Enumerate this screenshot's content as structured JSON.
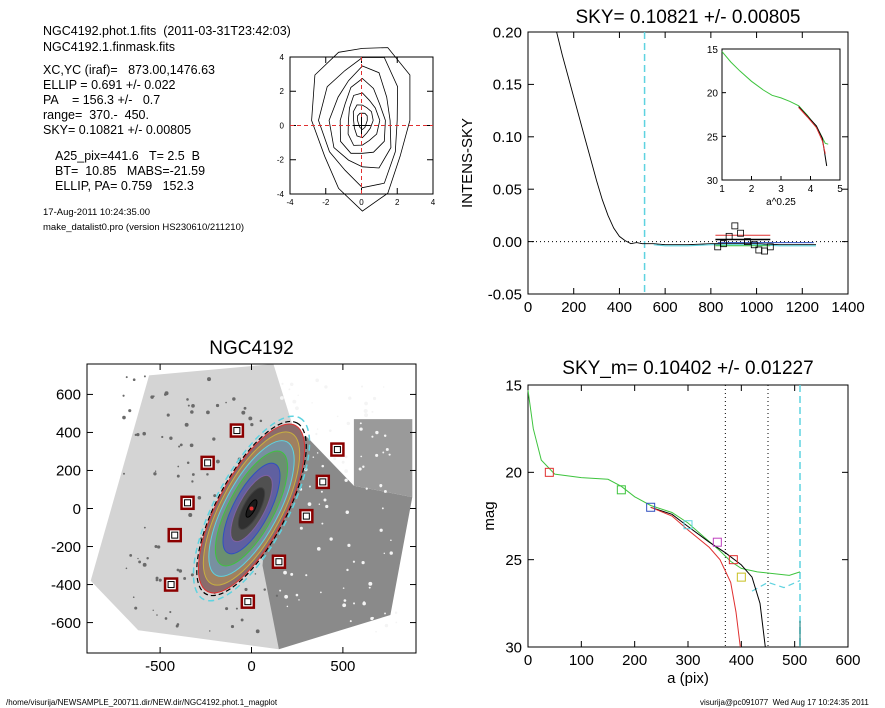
{
  "header": {
    "line1": "NGC4192.phot.1.fits  (2011-03-31T23:42:03)",
    "line2": "NGC4192.1.finmask.fits",
    "xcyc": "XC,YC (iraf)=   873.00,1476.63",
    "ellip": "ELLIP = 0.691 +/- 0.022",
    "pa": "PA    = 156.3 +/-   0.7",
    "range": "range=  370.-  450.",
    "sky": "SKY= 0.10821 +/- 0.00805",
    "a25": "A25_pix=441.6   T= 2.5  B",
    "bt": "BT=  10.85   MABS=-21.59",
    "ellip_pa": "ELLIP, PA= 0.759   152.3",
    "date": "17-Aug-2011 10:24:35.00",
    "program": "make_datalist0.pro (version HS230610/211210)"
  },
  "footer": {
    "path": "/home/visurija/NEWSAMPLE_200711.dir/NEW.dir/NGC4192.phot.1_magplot",
    "stamp": "visurija@pc091077  Wed Aug 17 10:24:35 2011"
  },
  "colors": {
    "sky_cyan": "#5ed3e0",
    "red": "#e03030",
    "green": "#3ec43e",
    "blue": "#3050c0",
    "mask": "#8b0000"
  },
  "chart_data": [
    {
      "id": "contour",
      "type": "contour",
      "title": "",
      "xlim": [
        -4,
        4
      ],
      "ylim": [
        -4,
        4
      ],
      "xticks": [
        "-4",
        "-2",
        "0",
        "2",
        "4"
      ],
      "yticks": [
        "-4",
        "-2",
        "0",
        "2",
        "4"
      ],
      "contour_scales": [
        0.5,
        1.0,
        1.6,
        2.3,
        3.1,
        4.0,
        5.0
      ]
    },
    {
      "id": "sky",
      "type": "line",
      "title": "SKY= 0.10821 +/- 0.00805",
      "xlabel": "",
      "ylabel": "INTENS-SKY",
      "xlim": [
        0,
        1400
      ],
      "ylim": [
        -0.05,
        0.2
      ],
      "xticks": [
        "0",
        "200",
        "400",
        "600",
        "800",
        "1000",
        "1200",
        "1400"
      ],
      "yticks": [
        "-0.05",
        "0.00",
        "0.05",
        "0.10",
        "0.15",
        "0.20"
      ],
      "vline": 510,
      "profile": [
        [
          125,
          0.2
        ],
        [
          150,
          0.178
        ],
        [
          175,
          0.158
        ],
        [
          200,
          0.138
        ],
        [
          225,
          0.118
        ],
        [
          250,
          0.098
        ],
        [
          275,
          0.078
        ],
        [
          300,
          0.058
        ],
        [
          325,
          0.04
        ],
        [
          350,
          0.025
        ],
        [
          375,
          0.013
        ],
        [
          400,
          0.005
        ],
        [
          425,
          0.001
        ],
        [
          450,
          -0.002
        ],
        [
          475,
          -0.001
        ],
        [
          500,
          -0.002
        ],
        [
          550,
          -0.002
        ],
        [
          600,
          -0.003
        ],
        [
          700,
          -0.003
        ],
        [
          800,
          -0.002
        ],
        [
          900,
          -0.002
        ],
        [
          1000,
          -0.002
        ],
        [
          1100,
          -0.003
        ],
        [
          1200,
          -0.003
        ],
        [
          1260,
          -0.003
        ]
      ],
      "boxes": [
        [
          830,
          -0.005
        ],
        [
          855,
          -0.002
        ],
        [
          880,
          0.005
        ],
        [
          905,
          0.015
        ],
        [
          930,
          0.008
        ],
        [
          960,
          0.0
        ],
        [
          990,
          -0.003
        ],
        [
          1010,
          -0.008
        ],
        [
          1035,
          -0.009
        ],
        [
          1060,
          -0.005
        ]
      ],
      "inset": {
        "xlabel": "a^0.25",
        "xlim": [
          1,
          5
        ],
        "ylim": [
          15,
          30
        ],
        "xticks": [
          "1",
          "2",
          "3",
          "4",
          "5"
        ],
        "yticks": [
          "15",
          "20",
          "25",
          "30"
        ],
        "green": [
          [
            1.0,
            15.3
          ],
          [
            1.3,
            16.5
          ],
          [
            1.6,
            17.5
          ],
          [
            2.0,
            18.7
          ],
          [
            2.4,
            19.7
          ],
          [
            2.7,
            20.3
          ],
          [
            3.0,
            20.6
          ],
          [
            3.3,
            21.0
          ],
          [
            3.6,
            21.5
          ],
          [
            3.9,
            22.6
          ],
          [
            4.1,
            23.5
          ],
          [
            4.3,
            24.5
          ],
          [
            4.5,
            25.8
          ],
          [
            4.6,
            25.9
          ]
        ],
        "black": [
          [
            3.6,
            21.6
          ],
          [
            3.9,
            22.7
          ],
          [
            4.2,
            23.8
          ],
          [
            4.4,
            25.2
          ],
          [
            4.55,
            28.4
          ]
        ],
        "red": [
          [
            3.6,
            21.7
          ],
          [
            3.9,
            22.8
          ],
          [
            4.2,
            24.0
          ],
          [
            4.4,
            25.5
          ],
          [
            4.5,
            27.0
          ]
        ]
      }
    },
    {
      "id": "image",
      "type": "scatter",
      "title": "NGC4192",
      "xlim": [
        -900,
        900
      ],
      "ylim": [
        -760,
        760
      ],
      "xticks": [
        "-500",
        "0",
        "500"
      ],
      "yticks": [
        "-600",
        "-400",
        "-200",
        "0",
        "200",
        "400",
        "600"
      ],
      "xtick_values": [
        -500,
        0,
        500
      ],
      "ytick_values": [
        -600,
        -400,
        -200,
        0,
        200,
        400,
        600
      ],
      "mask_boxes": [
        [
          -80,
          410
        ],
        [
          -240,
          240
        ],
        [
          -350,
          30
        ],
        [
          -420,
          -140
        ],
        [
          -440,
          -400
        ],
        [
          -20,
          -490
        ],
        [
          150,
          -280
        ],
        [
          300,
          -40
        ],
        [
          390,
          140
        ],
        [
          470,
          310
        ]
      ],
      "ellipse": {
        "a": 530,
        "b": 165,
        "pa_deg": 62
      }
    },
    {
      "id": "mag",
      "type": "line",
      "title": "SKY_m=  0.10402 +/- 0.01227",
      "xlabel": "a (pix)",
      "ylabel": "mag",
      "xlim": [
        0,
        600
      ],
      "ylim": [
        15,
        30
      ],
      "xticks": [
        "0",
        "100",
        "200",
        "300",
        "400",
        "500",
        "600"
      ],
      "yticks": [
        "15",
        "20",
        "25",
        "30"
      ],
      "vlines_dotted": [
        370,
        450
      ],
      "vline_dashed": 510,
      "green": [
        [
          0,
          15.3
        ],
        [
          10,
          17.5
        ],
        [
          25,
          19.3
        ],
        [
          50,
          20.1
        ],
        [
          100,
          20.3
        ],
        [
          150,
          20.4
        ],
        [
          175,
          20.8
        ],
        [
          200,
          21.4
        ],
        [
          230,
          21.9
        ],
        [
          270,
          22.3
        ],
        [
          300,
          22.9
        ],
        [
          330,
          23.7
        ],
        [
          360,
          24.5
        ],
        [
          380,
          25.1
        ],
        [
          400,
          25.5
        ],
        [
          430,
          25.7
        ],
        [
          460,
          25.8
        ],
        [
          490,
          25.9
        ],
        [
          510,
          25.7
        ]
      ],
      "black": [
        [
          230,
          22.0
        ],
        [
          270,
          22.4
        ],
        [
          300,
          23.1
        ],
        [
          340,
          24.0
        ],
        [
          370,
          24.6
        ],
        [
          400,
          25.3
        ],
        [
          420,
          26.0
        ],
        [
          435,
          27.5
        ],
        [
          445,
          30
        ]
      ],
      "red": [
        [
          230,
          22.0
        ],
        [
          270,
          22.5
        ],
        [
          300,
          23.3
        ],
        [
          340,
          24.3
        ],
        [
          360,
          25.0
        ],
        [
          380,
          26.3
        ],
        [
          390,
          28.0
        ],
        [
          398,
          30
        ]
      ],
      "cyan_dash": [
        [
          420,
          26.8
        ],
        [
          450,
          26.3
        ],
        [
          480,
          26.6
        ],
        [
          510,
          26.2
        ]
      ],
      "markers": [
        [
          40,
          20.0,
          "red"
        ],
        [
          175,
          21.0,
          "green"
        ],
        [
          230,
          22.0,
          "blue"
        ],
        [
          300,
          23.0,
          "cyan"
        ],
        [
          355,
          24.0,
          "magenta"
        ],
        [
          385,
          25.0,
          "red"
        ],
        [
          400,
          26.0,
          "yellow"
        ]
      ]
    }
  ]
}
